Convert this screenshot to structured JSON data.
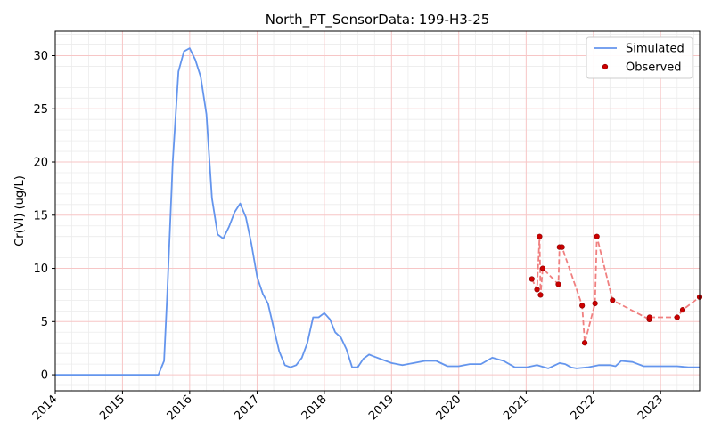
{
  "chart_data": {
    "type": "line",
    "title": "North_PT_SensorData: 199-H3-25",
    "xlabel": "",
    "ylabel": "Cr(VI) (ug/L)",
    "xlim": [
      "2014-01-01",
      "2023-08-01"
    ],
    "ylim": [
      -1.5,
      32.3
    ],
    "x_ticks": [
      "2014",
      "2015",
      "2016",
      "2017",
      "2018",
      "2019",
      "2020",
      "2021",
      "2022",
      "2023"
    ],
    "y_ticks": [
      0,
      5,
      10,
      15,
      20,
      25,
      30
    ],
    "grid": true,
    "legend_position": "top-right",
    "series": [
      {
        "name": "Simulated",
        "style": "line",
        "color": "#6495ED",
        "points": [
          [
            "2014-01-01",
            0
          ],
          [
            "2015-07-15",
            0
          ],
          [
            "2015-08-15",
            1.3
          ],
          [
            "2015-09-01",
            7.5
          ],
          [
            "2015-10-01",
            20
          ],
          [
            "2015-11-01",
            28.5
          ],
          [
            "2015-12-01",
            30.4
          ],
          [
            "2016-01-01",
            30.7
          ],
          [
            "2016-02-01",
            29.6
          ],
          [
            "2016-03-01",
            28
          ],
          [
            "2016-04-01",
            24.5
          ],
          [
            "2016-05-01",
            16.6
          ],
          [
            "2016-06-01",
            13.2
          ],
          [
            "2016-07-01",
            12.8
          ],
          [
            "2016-08-01",
            13.9
          ],
          [
            "2016-09-01",
            15.3
          ],
          [
            "2016-10-01",
            16.1
          ],
          [
            "2016-11-01",
            14.8
          ],
          [
            "2016-12-01",
            12.3
          ],
          [
            "2017-01-01",
            9.2
          ],
          [
            "2017-02-01",
            7.6
          ],
          [
            "2017-03-01",
            6.7
          ],
          [
            "2017-04-01",
            4.4
          ],
          [
            "2017-05-01",
            2.2
          ],
          [
            "2017-06-01",
            0.9
          ],
          [
            "2017-07-01",
            0.7
          ],
          [
            "2017-08-01",
            0.9
          ],
          [
            "2017-09-01",
            1.6
          ],
          [
            "2017-10-01",
            3
          ],
          [
            "2017-11-01",
            5.4
          ],
          [
            "2017-12-01",
            5.4
          ],
          [
            "2018-01-01",
            5.8
          ],
          [
            "2018-02-01",
            5.2
          ],
          [
            "2018-03-01",
            4
          ],
          [
            "2018-04-01",
            3.5
          ],
          [
            "2018-05-01",
            2.4
          ],
          [
            "2018-06-01",
            0.7
          ],
          [
            "2018-07-01",
            0.7
          ],
          [
            "2018-08-01",
            1.5
          ],
          [
            "2018-09-01",
            1.9
          ],
          [
            "2018-10-01",
            1.7
          ],
          [
            "2018-12-01",
            1.3
          ],
          [
            "2019-01-01",
            1.1
          ],
          [
            "2019-03-01",
            0.9
          ],
          [
            "2019-05-01",
            1.1
          ],
          [
            "2019-07-01",
            1.3
          ],
          [
            "2019-09-01",
            1.3
          ],
          [
            "2019-11-01",
            0.8
          ],
          [
            "2020-01-01",
            0.8
          ],
          [
            "2020-03-01",
            1
          ],
          [
            "2020-05-01",
            1
          ],
          [
            "2020-07-01",
            1.6
          ],
          [
            "2020-09-01",
            1.3
          ],
          [
            "2020-11-01",
            0.7
          ],
          [
            "2021-01-01",
            0.7
          ],
          [
            "2021-03-01",
            0.9
          ],
          [
            "2021-05-01",
            0.6
          ],
          [
            "2021-07-01",
            1.1
          ],
          [
            "2021-08-01",
            1
          ],
          [
            "2021-09-01",
            0.7
          ],
          [
            "2021-10-01",
            0.6
          ],
          [
            "2021-12-01",
            0.7
          ],
          [
            "2022-02-01",
            0.9
          ],
          [
            "2022-04-01",
            0.9
          ],
          [
            "2022-05-01",
            0.8
          ],
          [
            "2022-06-01",
            1.3
          ],
          [
            "2022-08-01",
            1.2
          ],
          [
            "2022-10-01",
            0.8
          ],
          [
            "2022-12-01",
            0.8
          ],
          [
            "2023-02-01",
            0.8
          ],
          [
            "2023-04-01",
            0.8
          ],
          [
            "2023-06-01",
            0.7
          ],
          [
            "2023-08-01",
            0.7
          ]
        ]
      },
      {
        "name": "Observed",
        "style": "scatter",
        "color": "#CC0000",
        "line_color": "#F08080",
        "points": [
          [
            "2021-02-01",
            9
          ],
          [
            "2021-03-01",
            8
          ],
          [
            "2021-03-15",
            13
          ],
          [
            "2021-03-20",
            7.5
          ],
          [
            "2021-04-01",
            10
          ],
          [
            "2021-06-25",
            8.5
          ],
          [
            "2021-07-01",
            12
          ],
          [
            "2021-07-15",
            12
          ],
          [
            "2021-11-01",
            6.5
          ],
          [
            "2021-11-15",
            3
          ],
          [
            "2022-01-10",
            6.7
          ],
          [
            "2022-01-20",
            13
          ],
          [
            "2022-04-15",
            7
          ],
          [
            "2022-11-01",
            5.2
          ],
          [
            "2022-11-02",
            5.4
          ],
          [
            "2023-04-01",
            5.4
          ],
          [
            "2023-05-01",
            6.1
          ],
          [
            "2023-08-01",
            7.3
          ]
        ]
      }
    ]
  }
}
